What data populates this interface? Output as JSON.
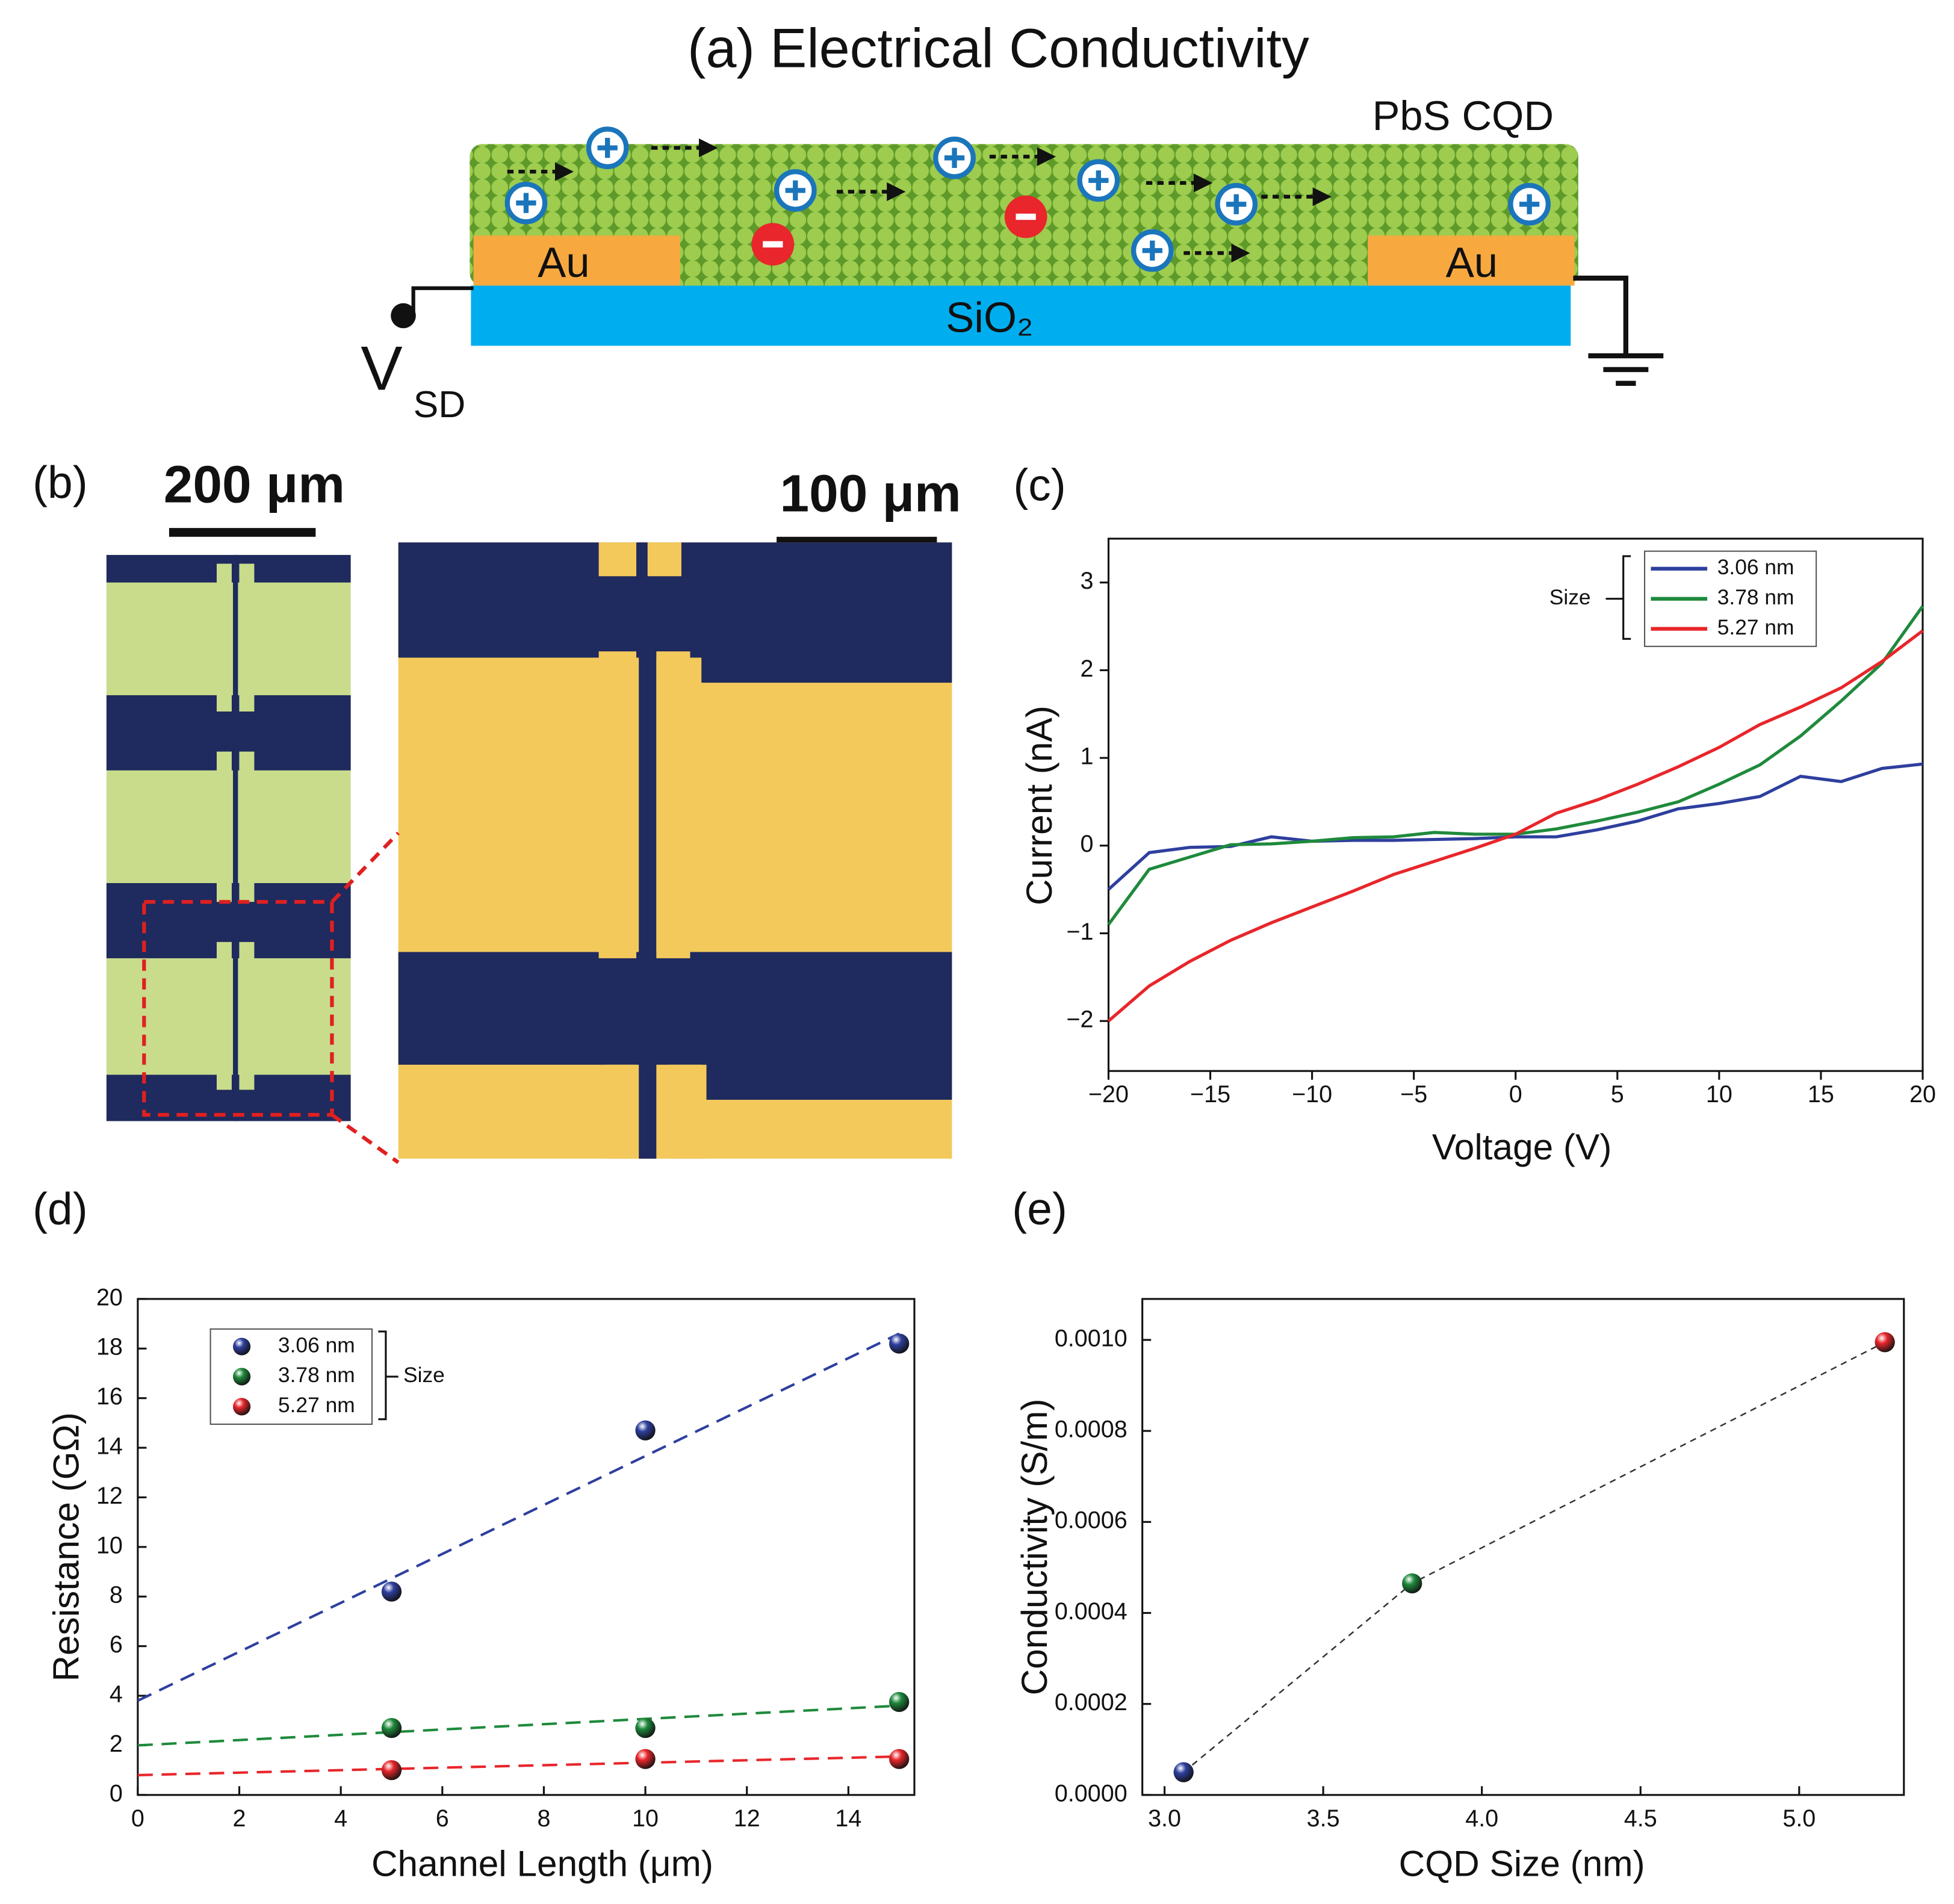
{
  "diagram": {
    "title": "(a) Electrical Conductivity",
    "layer_label": "PbS CQD",
    "electrodes": [
      "Au",
      "Au"
    ],
    "substrate": "SiO₂",
    "voltage": "V",
    "voltage_subscript": "SD"
  },
  "micrograph": {
    "label": "(b)",
    "scale_bars": [
      "200 μm",
      "100 μm"
    ]
  },
  "chart_data": [
    {
      "type": "line",
      "panel": "(c)",
      "xlabel": "Voltage (V)",
      "ylabel": "Current (nA)",
      "xlim": [
        -20,
        20
      ],
      "ylim": [
        -2.57,
        3.5
      ],
      "xticks": [
        {
          "value": -20,
          "label": "−20"
        },
        {
          "value": -15,
          "label": "−15"
        },
        {
          "value": -10,
          "label": "−10"
        },
        {
          "value": -5,
          "label": "−5"
        },
        0,
        5,
        10,
        15,
        20
      ],
      "yticks": [
        {
          "value": -2,
          "label": "−2"
        },
        {
          "value": -1,
          "label": "−1"
        },
        0,
        1,
        2,
        3
      ],
      "x": [
        -20,
        -18,
        -16,
        -14,
        -12,
        -10,
        -8,
        -6,
        -4,
        -2,
        0,
        2,
        4,
        6,
        8,
        10,
        12,
        14,
        16,
        18,
        20
      ],
      "legend_title": "Size",
      "legend": "upper right",
      "series": [
        {
          "name": "3.06 nm",
          "color": "#2e3f9e",
          "values": [
            -0.5,
            -0.08,
            -0.02,
            -0.01,
            0.1,
            0.05,
            0.06,
            0.06,
            0.07,
            0.08,
            0.1,
            0.1,
            0.18,
            0.28,
            0.42,
            0.48,
            0.56,
            0.79,
            0.73,
            0.88,
            0.93
          ]
        },
        {
          "name": "3.78 nm",
          "color": "#1f8a3c",
          "values": [
            -0.9,
            -0.27,
            -0.13,
            0.01,
            0.02,
            0.05,
            0.09,
            0.1,
            0.15,
            0.13,
            0.13,
            0.19,
            0.28,
            0.38,
            0.5,
            0.7,
            0.92,
            1.25,
            1.65,
            2.08,
            2.73
          ]
        },
        {
          "name": "5.27 nm",
          "color": "#e8262b",
          "values": [
            -2.0,
            -1.6,
            -1.32,
            -1.08,
            -0.88,
            -0.7,
            -0.52,
            -0.33,
            -0.18,
            -0.03,
            0.13,
            0.37,
            0.52,
            0.7,
            0.9,
            1.12,
            1.38,
            1.58,
            1.8,
            2.1,
            2.45
          ]
        }
      ]
    },
    {
      "type": "scatter",
      "panel": "(d)",
      "xlabel": "Channel Length (μm)",
      "ylabel": "Resistance (GΩ)",
      "xlim": [
        0,
        15.3
      ],
      "ylim": [
        0,
        20
      ],
      "xticks": [
        0,
        2,
        4,
        6,
        8,
        10,
        12,
        14
      ],
      "yticks": [
        0,
        2,
        4,
        6,
        8,
        10,
        12,
        14,
        16,
        18,
        20
      ],
      "x": [
        5,
        10,
        15
      ],
      "legend_title": "Size",
      "legend": "upper left",
      "series": [
        {
          "name": "3.06 nm",
          "color": "#2e3f9e",
          "values": [
            8.2,
            14.7,
            18.2
          ],
          "fit": {
            "x": [
              0,
              15
            ],
            "values": [
              3.8,
              18.6
            ]
          }
        },
        {
          "name": "3.78 nm",
          "color": "#1f8a3c",
          "values": [
            2.7,
            2.7,
            3.75
          ],
          "fit": {
            "x": [
              0,
              15
            ],
            "values": [
              2.0,
              3.6
            ]
          }
        },
        {
          "name": "5.27 nm",
          "color": "#e8262b",
          "values": [
            1.0,
            1.45,
            1.45
          ],
          "fit": {
            "x": [
              0,
              15
            ],
            "values": [
              0.8,
              1.55
            ]
          }
        }
      ]
    },
    {
      "type": "scatter",
      "panel": "(e)",
      "xlabel": "CQD Size (nm)",
      "ylabel": "Conductivity (S/m)",
      "xlim": [
        2.93,
        5.33
      ],
      "ylim": [
        0,
        0.00109
      ],
      "xticks": [
        {
          "value": 3,
          "label": "3.0"
        },
        3.5,
        {
          "value": 4,
          "label": "4.0"
        },
        4.5,
        {
          "value": 5,
          "label": "5.0"
        }
      ],
      "yticks": [
        {
          "value": 0,
          "label": "0.0000"
        },
        {
          "value": 0.0002,
          "label": "0.0002"
        },
        {
          "value": 0.0004,
          "label": "0.0004"
        },
        {
          "value": 0.0006,
          "label": "0.0006"
        },
        {
          "value": 0.0008,
          "label": "0.0008"
        },
        {
          "value": 0.001,
          "label": "0.0010"
        }
      ],
      "x": [
        3.06,
        3.78,
        5.27
      ],
      "values": [
        5e-05,
        0.000465,
        0.000995
      ],
      "colors": [
        "#2e3f9e",
        "#1f8a3c",
        "#e8262b"
      ],
      "line_color": "#333333"
    }
  ]
}
